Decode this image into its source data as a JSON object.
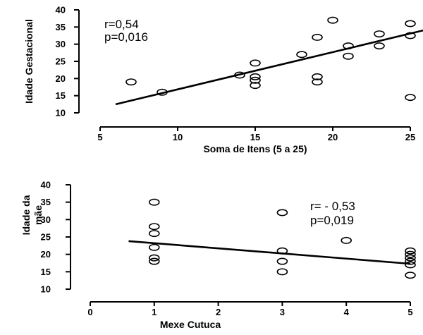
{
  "chart_data": [
    {
      "type": "scatter",
      "xlabel": "Soma de Itens (5 a 25)",
      "ylabel": "Idade Gestacional",
      "xlim": [
        5,
        25
      ],
      "ylim": [
        10,
        40
      ],
      "xticks": [
        "5",
        "10",
        "15",
        "20",
        "25"
      ],
      "yticks": [
        "10",
        "15",
        "20",
        "25",
        "30",
        "35",
        "40"
      ],
      "annotations": [
        "r=0,54",
        "p=0,016"
      ],
      "points": [
        {
          "x": 7,
          "y": 19
        },
        {
          "x": 9,
          "y": 16
        },
        {
          "x": 14,
          "y": 21
        },
        {
          "x": 15,
          "y": 24.5
        },
        {
          "x": 15,
          "y": 20.5
        },
        {
          "x": 15,
          "y": 19.5
        },
        {
          "x": 15,
          "y": 18
        },
        {
          "x": 18,
          "y": 27
        },
        {
          "x": 19,
          "y": 32
        },
        {
          "x": 19,
          "y": 20.5
        },
        {
          "x": 19,
          "y": 19
        },
        {
          "x": 20,
          "y": 37
        },
        {
          "x": 21,
          "y": 29.5
        },
        {
          "x": 21,
          "y": 26.5
        },
        {
          "x": 23,
          "y": 33
        },
        {
          "x": 23,
          "y": 29.5
        },
        {
          "x": 25,
          "y": 36
        },
        {
          "x": 25,
          "y": 32.5
        },
        {
          "x": 25,
          "y": 14.5
        }
      ],
      "trendline": {
        "x": [
          6,
          26
        ],
        "y": [
          12.5,
          34.2
        ]
      }
    },
    {
      "type": "scatter",
      "xlabel": "Mexe Cutuca",
      "ylabel": "Idade da mãe",
      "xlim": [
        0,
        5
      ],
      "ylim": [
        10,
        40
      ],
      "xticks": [
        "0",
        "1",
        "2",
        "3",
        "4",
        "5"
      ],
      "yticks": [
        "10",
        "15",
        "20",
        "25",
        "30",
        "35",
        "40"
      ],
      "annotations": [
        "r= - 0,53",
        "p=0,019"
      ],
      "points": [
        {
          "x": 1,
          "y": 35
        },
        {
          "x": 1,
          "y": 28
        },
        {
          "x": 1,
          "y": 26
        },
        {
          "x": 1,
          "y": 22
        },
        {
          "x": 1,
          "y": 19
        },
        {
          "x": 1,
          "y": 18
        },
        {
          "x": 3,
          "y": 32
        },
        {
          "x": 3,
          "y": 21
        },
        {
          "x": 3,
          "y": 18
        },
        {
          "x": 3,
          "y": 15
        },
        {
          "x": 4,
          "y": 24
        },
        {
          "x": 5,
          "y": 21
        },
        {
          "x": 5,
          "y": 20
        },
        {
          "x": 5,
          "y": 19
        },
        {
          "x": 5,
          "y": 18
        },
        {
          "x": 5,
          "y": 17
        },
        {
          "x": 5,
          "y": 14
        }
      ],
      "trendline": {
        "x": [
          0.6,
          5
        ],
        "y": [
          23.8,
          17.3
        ]
      }
    }
  ]
}
